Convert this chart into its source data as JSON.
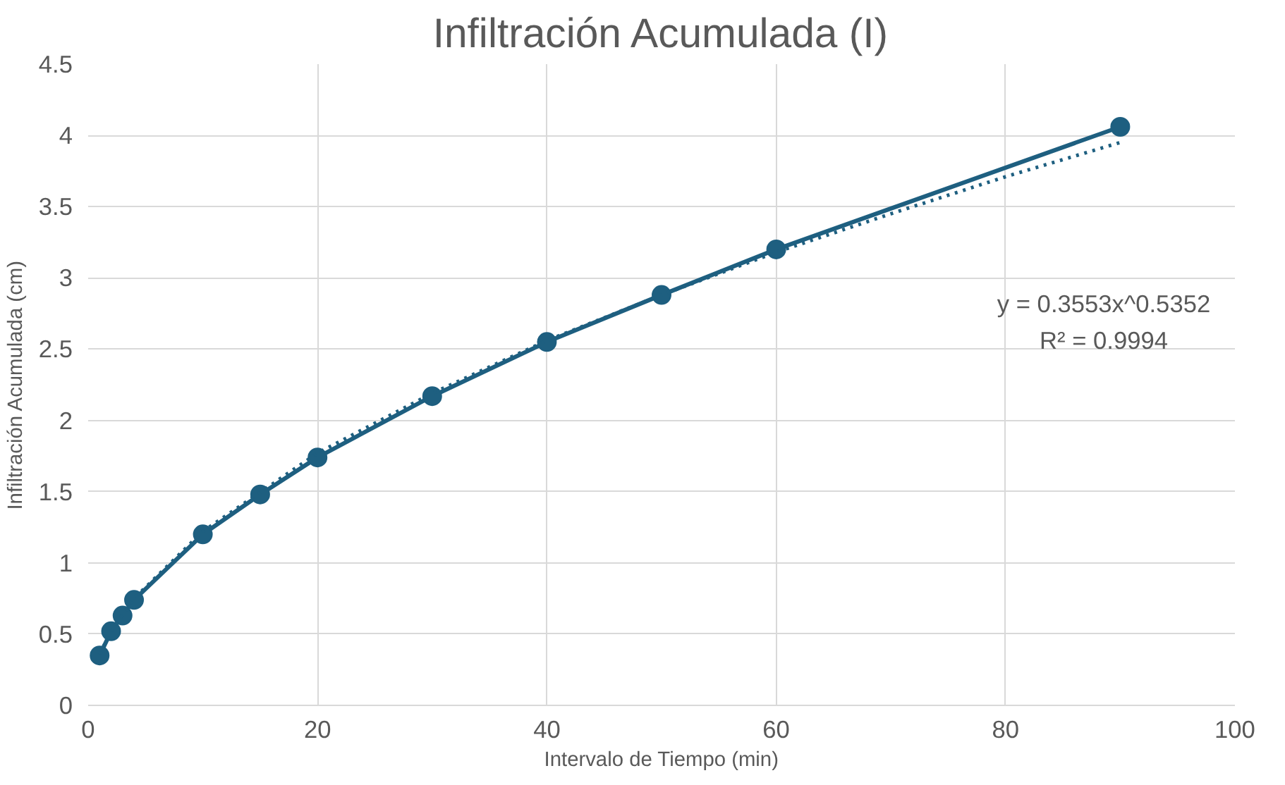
{
  "chart_data": {
    "type": "line",
    "title": "Infiltración Acumulada (I)",
    "xlabel": "Intervalo de Tiempo (min)",
    "ylabel": "Infiltración Acumulada (cm)",
    "xlim": [
      0,
      100
    ],
    "xticks": [
      0,
      20,
      40,
      60,
      80,
      100
    ],
    "ylim": [
      0,
      4.5
    ],
    "yticks": [
      0,
      0.5,
      1,
      1.5,
      2,
      2.5,
      3,
      3.5,
      4,
      4.5
    ],
    "grid": true,
    "marker": "circle",
    "series": [
      {
        "color": "#1e5f80",
        "line_style": "solid",
        "x": [
          1,
          2,
          3,
          4,
          10,
          15,
          20,
          30,
          40,
          50,
          60,
          90
        ],
        "values": [
          0.35,
          0.52,
          0.63,
          0.74,
          1.2,
          1.48,
          1.74,
          2.17,
          2.55,
          2.88,
          3.2,
          4.06
        ]
      },
      {
        "color": "#1e5f80",
        "marker": "none",
        "line_style": "dotted",
        "x": [
          1,
          2,
          4,
          10,
          20,
          30,
          40,
          50,
          60,
          70,
          80,
          90
        ],
        "values": [
          0.36,
          0.52,
          0.75,
          1.22,
          1.77,
          2.19,
          2.56,
          2.88,
          3.18,
          3.45,
          3.71,
          3.95
        ]
      }
    ],
    "annotations": [
      "y = 0.3553x^0.5352",
      "R² = 0.9994"
    ]
  }
}
